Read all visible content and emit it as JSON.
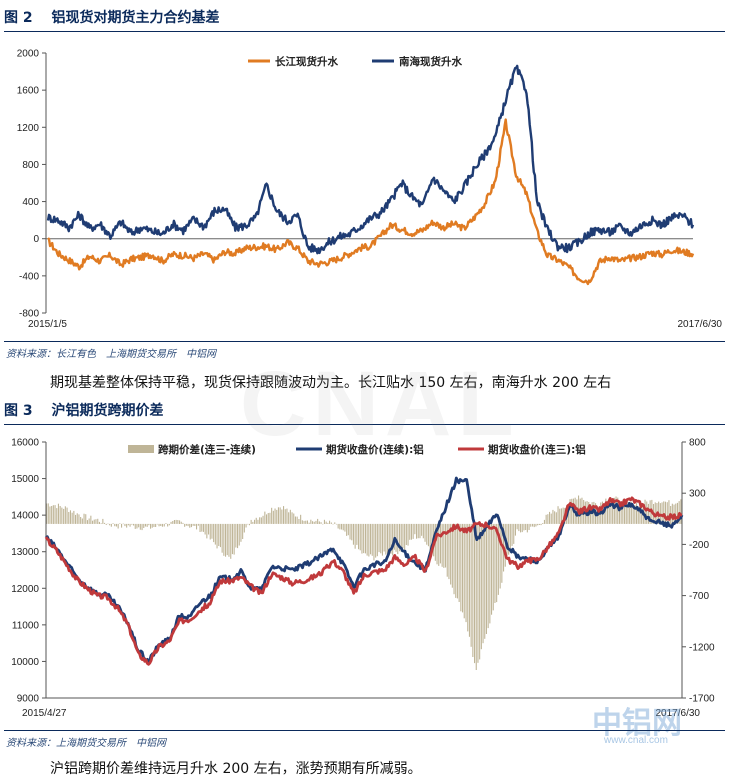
{
  "figures": [
    {
      "title": "图 2　 铝现货对期货主力合约基差",
      "source": "资料来源：长江有色　上海期货交易所　中铝网",
      "commentary": "期现基差整体保持平稳，现货保持跟随波动为主。长江贴水 150 左右，南海升水 200 左右"
    },
    {
      "title": "图 3　 沪铝期货跨期价差",
      "source": "资料来源：上海期货交易所　中铝网",
      "commentary": "沪铝跨期价差维持远月升水 200 左右，涨势预期有所减弱。"
    }
  ],
  "watermark": {
    "text": "CNAL",
    "logo": "中铝网",
    "url": "www.cnal.com"
  },
  "colors": {
    "orange": "#e07b22",
    "navy": "#1f3c73",
    "red": "#c0393b",
    "khaki": "#bfb597",
    "title": "#0b2a5b"
  },
  "chart_data": [
    {
      "type": "line",
      "title": "",
      "x_start_label": "2015/1/5",
      "x_end_label": "2017/6/30",
      "ylim": [
        -800,
        2000
      ],
      "y_ticks": [
        2000,
        1600,
        1200,
        800,
        400,
        0,
        -400,
        -800
      ],
      "legend_position": "top-center",
      "series": [
        {
          "name": "长江现货升水",
          "color": "#e07b22",
          "values": [
            -20,
            -160,
            -230,
            -300,
            -190,
            -240,
            -180,
            -280,
            -220,
            -200,
            -170,
            -240,
            -170,
            -180,
            -210,
            -160,
            -230,
            -140,
            -160,
            -100,
            -90,
            -80,
            -120,
            -40,
            -100,
            -240,
            -270,
            -250,
            -210,
            -160,
            -100,
            -80,
            30,
            150,
            100,
            60,
            90,
            180,
            120,
            160,
            110,
            230,
            380,
            620,
            1250,
            690,
            480,
            80,
            -180,
            -230,
            -300,
            -420,
            -460,
            -250,
            -200,
            -240,
            -210,
            -190,
            -150,
            -170,
            -120,
            -140,
            -160
          ]
        },
        {
          "name": "南海现货升水",
          "color": "#1f3c73",
          "values": [
            230,
            200,
            120,
            260,
            110,
            160,
            30,
            180,
            60,
            120,
            80,
            50,
            160,
            90,
            210,
            130,
            300,
            320,
            120,
            140,
            230,
            580,
            300,
            190,
            250,
            -90,
            -120,
            -40,
            20,
            50,
            130,
            220,
            280,
            420,
            600,
            450,
            350,
            660,
            520,
            400,
            560,
            760,
            910,
            1100,
            1500,
            1840,
            1600,
            400,
            100,
            -80,
            -100,
            -40,
            60,
            100,
            70,
            130,
            60,
            140,
            200,
            150,
            230,
            250,
            150
          ]
        }
      ]
    },
    {
      "type": "line",
      "title": "",
      "x_start_label": "2015/4/27",
      "x_end_label": "2017/6/30",
      "ylim": [
        9000,
        16000
      ],
      "y_ticks": [
        16000,
        15000,
        14000,
        13000,
        12000,
        11000,
        10000,
        9000
      ],
      "y2lim": [
        -1700,
        800
      ],
      "y2_ticks": [
        800,
        300,
        -200,
        -700,
        -1200,
        -1700
      ],
      "legend_position": "top-center",
      "series": [
        {
          "name": "跨期价差(连三-连续)",
          "type": "bar",
          "axis": "right",
          "color": "#bfb597",
          "values": [
            200,
            180,
            150,
            100,
            60,
            40,
            0,
            -20,
            -20,
            -30,
            -40,
            -20,
            0,
            20,
            -20,
            -50,
            -150,
            -250,
            -350,
            -150,
            40,
            80,
            150,
            170,
            100,
            60,
            30,
            20,
            0,
            -80,
            -200,
            -300,
            -330,
            -280,
            -280,
            -240,
            -120,
            -150,
            -350,
            -450,
            -700,
            -950,
            -1450,
            -1050,
            -750,
            -360,
            -80,
            -60,
            -20,
            80,
            150,
            200,
            280,
            210,
            200,
            260,
            230,
            190,
            200,
            220,
            230,
            200,
            240
          ]
        },
        {
          "name": "期货收盘价(连续):铝",
          "axis": "left",
          "color": "#1f3c73",
          "values": [
            13400,
            13100,
            12700,
            12300,
            12050,
            11850,
            11800,
            11500,
            11050,
            10300,
            10000,
            10450,
            10600,
            11250,
            11200,
            11600,
            11800,
            12300,
            12250,
            12450,
            12000,
            11950,
            12600,
            12550,
            12500,
            12600,
            12750,
            12900,
            13100,
            12650,
            12050,
            12500,
            12650,
            12700,
            13300,
            12950,
            12700,
            12500,
            13500,
            14250,
            14950,
            14950,
            13300,
            13700,
            14050,
            13150,
            12850,
            12800,
            12750,
            13100,
            13400,
            14250,
            14000,
            14100,
            14050,
            14300,
            14200,
            14300,
            14100,
            13800,
            13800,
            13700,
            14000
          ]
        },
        {
          "name": "期货收盘价(连三):铝",
          "axis": "left",
          "color": "#c0393b",
          "values": [
            13350,
            13050,
            12650,
            12250,
            12000,
            11800,
            11750,
            11450,
            11000,
            10200,
            9950,
            10400,
            10550,
            11100,
            11150,
            11400,
            11600,
            12200,
            12200,
            12300,
            12050,
            11850,
            12400,
            12300,
            12150,
            12200,
            12300,
            12450,
            12750,
            12450,
            11850,
            12350,
            12450,
            12500,
            12850,
            12650,
            12850,
            12450,
            13400,
            13550,
            13700,
            13550,
            13750,
            13750,
            13550,
            12800,
            12600,
            12750,
            12800,
            13150,
            13500,
            14300,
            14100,
            14200,
            14150,
            14400,
            14300,
            14450,
            14300,
            14100,
            13950,
            13950,
            14000
          ]
        }
      ]
    }
  ]
}
